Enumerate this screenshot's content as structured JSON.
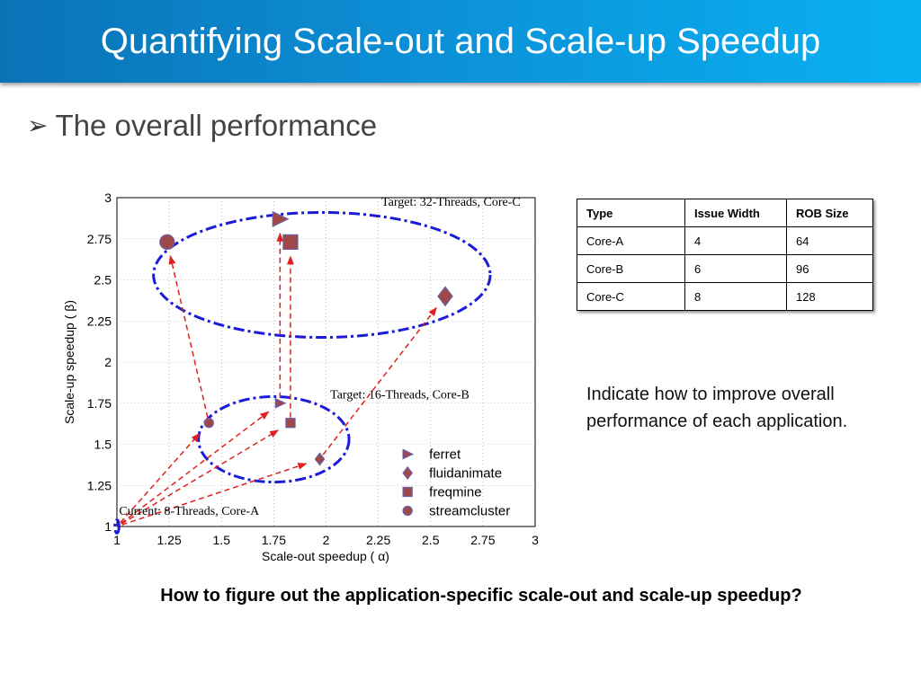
{
  "slide": {
    "title": "Quantifying Scale-out and Scale-up Speedup",
    "bullet_icon": "arrowhead-bullet-icon",
    "bullet_text": "The overall performance",
    "note": "Indicate how to improve overall performance of each application.",
    "question": "How to figure out the application-specific scale-out and scale-up speedup?"
  },
  "colors": {
    "title_gradient_start": "#0a73b6",
    "title_gradient_end": "#09b1f2",
    "ellipse": "#1a1adb",
    "arrow": "#e02020",
    "marker_fill": "#a04848",
    "marker_stroke": "#6b5ea0"
  },
  "table": {
    "headers": [
      "Type",
      "Issue Width",
      "ROB Size"
    ],
    "rows": [
      [
        "Core-A",
        "4",
        "64"
      ],
      [
        "Core-B",
        "6",
        "96"
      ],
      [
        "Core-C",
        "8",
        "128"
      ]
    ]
  },
  "chart_data": {
    "type": "scatter",
    "xlabel": "Scale-out speedup ( α)",
    "ylabel": "Scale-up speedup ( β)",
    "xlim": [
      1,
      3
    ],
    "ylim": [
      1,
      3
    ],
    "xticks": [
      "1",
      "1.25",
      "1.5",
      "1.75",
      "2",
      "2.25",
      "2.5",
      "2.75",
      "3"
    ],
    "yticks": [
      "1",
      "1.25",
      "1.5",
      "1.75",
      "2",
      "2.25",
      "2.5",
      "2.75",
      "3"
    ],
    "grid": true,
    "legend_position": "bottom-right",
    "series": [
      {
        "name": "ferret",
        "marker": "triangle-right",
        "points": [
          [
            1.0,
            1.0
          ],
          [
            1.78,
            1.75
          ],
          [
            1.78,
            2.87
          ]
        ]
      },
      {
        "name": "fluidanimate",
        "marker": "diamond",
        "points": [
          [
            1.0,
            1.0
          ],
          [
            1.97,
            1.41
          ],
          [
            2.57,
            2.4
          ]
        ]
      },
      {
        "name": "freqmine",
        "marker": "square",
        "points": [
          [
            1.0,
            1.0
          ],
          [
            1.83,
            1.63
          ],
          [
            1.83,
            2.73
          ]
        ]
      },
      {
        "name": "streamcluster",
        "marker": "circle",
        "points": [
          [
            1.0,
            1.0
          ],
          [
            1.44,
            1.63
          ],
          [
            1.24,
            2.73
          ]
        ]
      }
    ],
    "annotations": [
      {
        "text": "Current: 8-Threads, Core-A"
      },
      {
        "text": "Target: 16-Threads, Core-B"
      },
      {
        "text": "Target: 32-Threads, Core-C"
      }
    ]
  }
}
